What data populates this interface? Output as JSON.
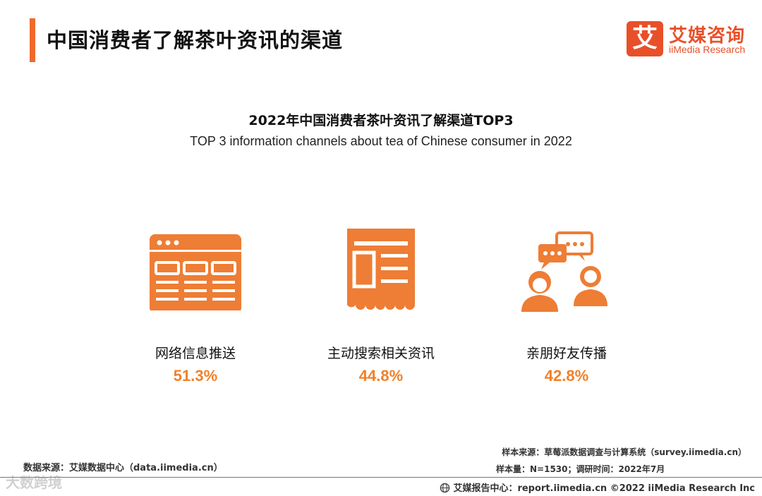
{
  "header": {
    "title": "中国消费者了解茶叶资讯的渠道",
    "logo_mark": "艾",
    "logo_cn": "艾媒咨询",
    "logo_en": "iiMedia Research"
  },
  "chart_data": {
    "type": "bar",
    "title": "2022年中国消费者茶叶资讯了解渠道TOP3",
    "subtitle": "TOP 3 information channels about tea of Chinese consumer in 2022",
    "categories": [
      "网络信息推送",
      "主动搜索相关资讯",
      "亲朋好友传播"
    ],
    "values": [
      51.3,
      44.8,
      42.8
    ],
    "value_labels": [
      "51.3%",
      "44.8%",
      "42.8%"
    ],
    "icons": [
      "browser-window-icon",
      "news-document-icon",
      "people-chat-icon"
    ],
    "accent_color": "#f0802a"
  },
  "footer": {
    "source_left": "数据来源：艾媒数据中心（data.iimedia.cn）",
    "sample_source": "样本来源：草莓派数据调查与计算系统（survey.iimedia.cn）",
    "sample_size": "样本量：N=1530；调研时间：2022年7月",
    "report_center": "艾媒报告中心：report.iimedia.cn  ©2022  iiMedia Research  Inc",
    "watermark": "大数跨境"
  },
  "colors": {
    "accent": "#f0692a",
    "brand": "#e8502a",
    "icon": "#ee7d35"
  }
}
